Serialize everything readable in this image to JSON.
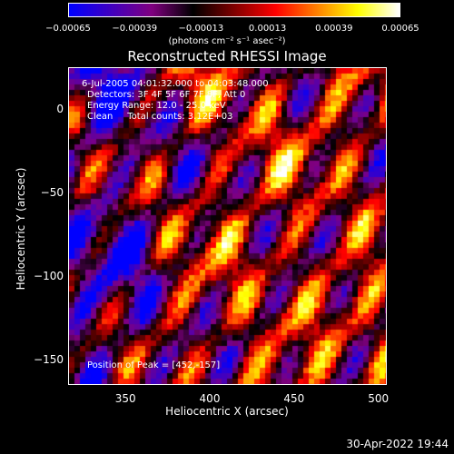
{
  "chart_data": {
    "type": "heatmap",
    "title": "Reconstructed RHESSI Image",
    "xlabel": "Heliocentric X (arcsec)",
    "ylabel": "Heliocentric Y (arcsec)",
    "xlim": [
      316,
      505
    ],
    "ylim": [
      -165,
      25
    ],
    "xticks": [
      {
        "value": 350,
        "label": "350"
      },
      {
        "value": 400,
        "label": "400"
      },
      {
        "value": 450,
        "label": "450"
      },
      {
        "value": 500,
        "label": "500"
      }
    ],
    "yticks": [
      {
        "value": 0,
        "label": "0"
      },
      {
        "value": -50,
        "label": "−50"
      },
      {
        "value": -100,
        "label": "−100"
      },
      {
        "value": -150,
        "label": "−150"
      }
    ],
    "colorbar": {
      "min": -0.00065,
      "max": 0.00065,
      "ticks": [
        {
          "value": -0.00065,
          "label": "−0.00065"
        },
        {
          "value": -0.00039,
          "label": "−0.00039"
        },
        {
          "value": -0.00013,
          "label": "−0.00013"
        },
        {
          "value": 0.00013,
          "label": "0.00013"
        },
        {
          "value": 0.00039,
          "label": "0.00039"
        },
        {
          "value": 0.00065,
          "label": "0.00065"
        }
      ],
      "units": "(photons cm⁻² s⁻¹ asec⁻²)",
      "colors": [
        "#0000ff",
        "#4000c0",
        "#800080",
        "#000000",
        "#800000",
        "#ff0000",
        "#ff8000",
        "#ffff00",
        "#ffffff"
      ]
    },
    "annotations": {
      "time": "6-Jul-2005 04:01:32.000 to 04:03:48.000",
      "detectors": "Detectors: 3F 4F 5F 6F 7F 8F, Att 0",
      "energy": "Energy Range: 12.0 - 25.0 keV",
      "clean": "Clean     Total counts: 3.12E+03",
      "peak": "Position of Peak = [452,-157]"
    },
    "peak": {
      "x": 452,
      "y": -157
    }
  },
  "footer": {
    "timestamp": "30-Apr-2022 19:44"
  }
}
